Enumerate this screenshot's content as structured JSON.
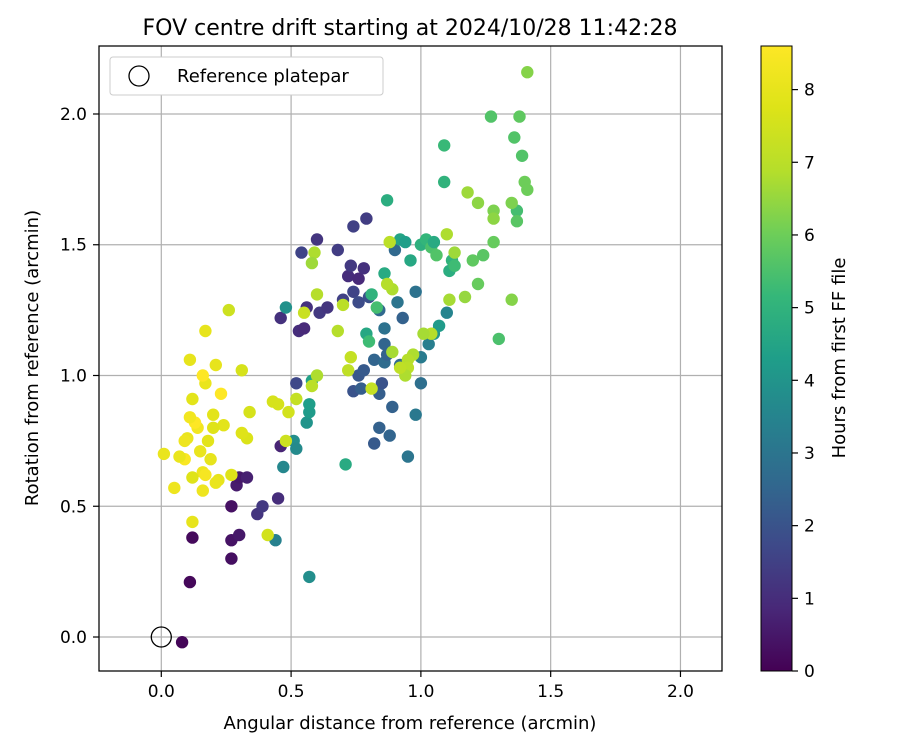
{
  "chart_data": {
    "type": "scatter",
    "title": "FOV centre drift starting at 2024/10/28 11:42:28",
    "xlabel": "Angular distance from reference (arcmin)",
    "ylabel": "Rotation from reference (arcmin)",
    "xlim": [
      -0.24,
      2.16
    ],
    "ylim": [
      -0.13,
      2.26
    ],
    "x_ticks": [
      0.0,
      0.5,
      1.0,
      1.5,
      2.0
    ],
    "y_ticks": [
      0.0,
      0.5,
      1.0,
      1.5,
      2.0
    ],
    "x_tick_labels": [
      "0.0",
      "0.5",
      "1.0",
      "1.5",
      "2.0"
    ],
    "y_tick_labels": [
      "0.0",
      "0.5",
      "1.0",
      "1.5",
      "2.0"
    ],
    "grid": true,
    "legend": {
      "placement": "top-left",
      "entries": [
        "Reference platepar"
      ]
    },
    "reference_point": {
      "x": 0.0,
      "y": 0.0
    },
    "colorbar": {
      "label": "Hours from first FF file",
      "colormap": "viridis",
      "range": [
        0,
        8.6
      ],
      "ticks": [
        0,
        1,
        2,
        3,
        4,
        5,
        6,
        7,
        8
      ],
      "tick_labels": [
        "0",
        "1",
        "2",
        "3",
        "4",
        "5",
        "6",
        "7",
        "8"
      ]
    },
    "points": [
      [
        0.08,
        -0.02,
        0.1
      ],
      [
        0.12,
        0.38,
        0.2
      ],
      [
        0.11,
        0.21,
        0.15
      ],
      [
        0.27,
        0.3,
        0.3
      ],
      [
        0.27,
        0.37,
        0.4
      ],
      [
        0.3,
        0.39,
        0.5
      ],
      [
        0.27,
        0.5,
        0.35
      ],
      [
        0.29,
        0.58,
        0.6
      ],
      [
        0.3,
        0.61,
        0.5
      ],
      [
        0.33,
        0.61,
        0.7
      ],
      [
        0.37,
        0.47,
        1.2
      ],
      [
        0.39,
        0.5,
        1.3
      ],
      [
        0.45,
        0.53,
        1.0
      ],
      [
        0.46,
        0.73,
        0.8
      ],
      [
        0.46,
        1.22,
        1.1
      ],
      [
        0.52,
        0.97,
        1.7
      ],
      [
        0.53,
        1.17,
        1.0
      ],
      [
        0.55,
        1.18,
        0.9
      ],
      [
        0.56,
        1.26,
        1.1
      ],
      [
        0.54,
        1.47,
        1.6
      ],
      [
        0.6,
        1.52,
        1.2
      ],
      [
        0.61,
        1.24,
        1.3
      ],
      [
        0.64,
        1.26,
        1.2
      ],
      [
        0.68,
        1.48,
        1.4
      ],
      [
        0.72,
        1.38,
        1.0
      ],
      [
        0.73,
        1.42,
        1.3
      ],
      [
        0.74,
        1.57,
        1.5
      ],
      [
        0.76,
        1.37,
        0.9
      ],
      [
        0.78,
        1.41,
        1.1
      ],
      [
        0.79,
        1.6,
        1.4
      ],
      [
        0.7,
        1.29,
        1.5
      ],
      [
        0.74,
        1.32,
        1.6
      ],
      [
        0.76,
        1.28,
        1.8
      ],
      [
        0.8,
        1.3,
        1.9
      ],
      [
        0.74,
        0.94,
        2.0
      ],
      [
        0.77,
        0.95,
        2.3
      ],
      [
        0.76,
        1.0,
        2.1
      ],
      [
        0.78,
        1.02,
        2.2
      ],
      [
        0.82,
        1.06,
        2.5
      ],
      [
        0.84,
        0.93,
        2.3
      ],
      [
        0.82,
        0.74,
        2.2
      ],
      [
        0.84,
        0.8,
        2.4
      ],
      [
        0.85,
        0.97,
        2.0
      ],
      [
        0.88,
        0.77,
        2.5
      ],
      [
        0.89,
        0.88,
        2.4
      ],
      [
        0.86,
        1.05,
        2.7
      ],
      [
        0.86,
        1.12,
        2.5
      ],
      [
        0.87,
        1.08,
        2.4
      ],
      [
        0.84,
        1.25,
        2.6
      ],
      [
        0.86,
        1.18,
        2.9
      ],
      [
        0.9,
        1.48,
        2.6
      ],
      [
        0.93,
        1.22,
        2.4
      ],
      [
        0.91,
        1.28,
        3.0
      ],
      [
        0.92,
        1.04,
        2.6
      ],
      [
        0.95,
        0.69,
        3.0
      ],
      [
        0.98,
        0.85,
        3.1
      ],
      [
        1.0,
        0.97,
        2.8
      ],
      [
        0.98,
        1.32,
        2.9
      ],
      [
        1.0,
        1.07,
        3.2
      ],
      [
        1.03,
        1.12,
        3.3
      ],
      [
        1.05,
        1.16,
        4.0
      ],
      [
        1.07,
        1.19,
        4.2
      ],
      [
        1.1,
        1.24,
        3.5
      ],
      [
        1.11,
        1.4,
        4.8
      ],
      [
        1.12,
        1.44,
        5.0
      ],
      [
        0.44,
        0.37,
        3.4
      ],
      [
        0.47,
        0.65,
        3.6
      ],
      [
        0.51,
        0.75,
        3.8
      ],
      [
        0.52,
        0.72,
        3.7
      ],
      [
        0.56,
        0.82,
        4.0
      ],
      [
        0.57,
        0.86,
        4.2
      ],
      [
        0.57,
        0.89,
        4.3
      ],
      [
        0.58,
        0.98,
        4.4
      ],
      [
        0.48,
        1.26,
        3.9
      ],
      [
        0.57,
        0.23,
        3.8
      ],
      [
        0.71,
        0.66,
        4.7
      ],
      [
        0.79,
        1.16,
        4.6
      ],
      [
        0.8,
        1.13,
        5.3
      ],
      [
        0.81,
        1.31,
        5.0
      ],
      [
        0.83,
        1.26,
        5.4
      ],
      [
        0.86,
        1.39,
        4.7
      ],
      [
        0.87,
        1.67,
        4.8
      ],
      [
        0.92,
        1.52,
        4.5
      ],
      [
        0.94,
        1.51,
        4.3
      ],
      [
        0.96,
        1.44,
        4.6
      ],
      [
        1.0,
        1.5,
        4.9
      ],
      [
        1.02,
        1.52,
        5.1
      ],
      [
        1.04,
        1.49,
        5.5
      ],
      [
        1.06,
        1.46,
        5.6
      ],
      [
        1.05,
        1.51,
        4.7
      ],
      [
        1.09,
        1.74,
        5.0
      ],
      [
        1.09,
        1.88,
        5.2
      ],
      [
        1.13,
        1.42,
        5.3
      ],
      [
        1.2,
        1.44,
        5.8
      ],
      [
        1.22,
        1.35,
        5.9
      ],
      [
        1.24,
        1.46,
        5.7
      ],
      [
        1.27,
        1.99,
        5.6
      ],
      [
        1.28,
        1.51,
        5.9
      ],
      [
        1.3,
        1.14,
        5.5
      ],
      [
        1.36,
        1.91,
        5.6
      ],
      [
        1.37,
        1.63,
        5.4
      ],
      [
        1.37,
        1.59,
        5.7
      ],
      [
        1.38,
        1.99,
        5.8
      ],
      [
        1.39,
        1.84,
        5.6
      ],
      [
        1.4,
        1.74,
        6.0
      ],
      [
        1.41,
        1.71,
        6.0
      ],
      [
        1.35,
        1.66,
        6.2
      ],
      [
        1.35,
        1.29,
        6.3
      ],
      [
        1.28,
        1.63,
        6.2
      ],
      [
        1.28,
        1.6,
        6.4
      ],
      [
        1.22,
        1.66,
        6.4
      ],
      [
        1.18,
        1.7,
        6.6
      ],
      [
        1.17,
        1.3,
        6.5
      ],
      [
        1.11,
        1.29,
        6.7
      ],
      [
        1.13,
        1.47,
        6.6
      ],
      [
        1.41,
        2.16,
        6.3
      ],
      [
        1.1,
        1.54,
        6.8
      ],
      [
        1.04,
        1.16,
        6.9
      ],
      [
        1.01,
        1.16,
        6.7
      ],
      [
        0.97,
        1.08,
        6.8
      ],
      [
        0.95,
        1.06,
        6.9
      ],
      [
        0.95,
        1.03,
        7.0
      ],
      [
        0.94,
        1.0,
        6.8
      ],
      [
        0.92,
        1.03,
        7.1
      ],
      [
        0.89,
        1.09,
        6.7
      ],
      [
        0.89,
        1.33,
        6.8
      ],
      [
        0.87,
        1.35,
        6.9
      ],
      [
        0.88,
        1.51,
        7.0
      ],
      [
        0.81,
        0.95,
        7.2
      ],
      [
        0.73,
        1.07,
        7.2
      ],
      [
        0.72,
        1.02,
        7.1
      ],
      [
        0.7,
        1.27,
        7.0
      ],
      [
        0.68,
        1.17,
        6.9
      ],
      [
        0.6,
        1.0,
        6.8
      ],
      [
        0.6,
        1.31,
        6.9
      ],
      [
        0.59,
        1.47,
        6.8
      ],
      [
        0.58,
        1.43,
        6.6
      ],
      [
        0.58,
        0.96,
        7.0
      ],
      [
        0.55,
        1.24,
        7.3
      ],
      [
        0.52,
        0.91,
        7.2
      ],
      [
        0.49,
        0.86,
        7.5
      ],
      [
        0.48,
        0.75,
        7.4
      ],
      [
        0.45,
        0.89,
        7.6
      ],
      [
        0.43,
        0.9,
        7.6
      ],
      [
        0.41,
        0.39,
        7.5
      ],
      [
        0.34,
        0.86,
        7.6
      ],
      [
        0.33,
        0.76,
        7.7
      ],
      [
        0.31,
        0.78,
        7.8
      ],
      [
        0.31,
        1.02,
        7.6
      ],
      [
        0.27,
        0.62,
        7.8
      ],
      [
        0.26,
        1.25,
        7.4
      ],
      [
        0.24,
        0.81,
        7.9
      ],
      [
        0.22,
        0.6,
        8.0
      ],
      [
        0.21,
        0.59,
        8.1
      ],
      [
        0.21,
        1.04,
        8.0
      ],
      [
        0.2,
        0.85,
        7.9
      ],
      [
        0.2,
        0.8,
        7.8
      ],
      [
        0.19,
        0.68,
        8.0
      ],
      [
        0.18,
        0.75,
        7.9
      ],
      [
        0.17,
        0.97,
        8.1
      ],
      [
        0.17,
        1.17,
        8.0
      ],
      [
        0.16,
        0.63,
        8.2
      ],
      [
        0.17,
        0.62,
        8.4
      ],
      [
        0.16,
        0.56,
        8.2
      ],
      [
        0.15,
        0.71,
        8.1
      ],
      [
        0.14,
        0.8,
        8.3
      ],
      [
        0.13,
        0.82,
        8.6
      ],
      [
        0.12,
        0.91,
        7.9
      ],
      [
        0.12,
        0.61,
        7.8
      ],
      [
        0.12,
        0.44,
        8.0
      ],
      [
        0.11,
        1.06,
        8.0
      ],
      [
        0.11,
        0.84,
        8.3
      ],
      [
        0.1,
        0.76,
        8.1
      ],
      [
        0.09,
        0.75,
        8.2
      ],
      [
        0.09,
        0.68,
        8.5
      ],
      [
        0.07,
        0.69,
        8.1
      ],
      [
        0.05,
        0.57,
        8.2
      ],
      [
        0.01,
        0.7,
        8.1
      ],
      [
        0.16,
        1.0,
        8.6
      ],
      [
        0.23,
        0.93,
        8.6
      ]
    ]
  }
}
